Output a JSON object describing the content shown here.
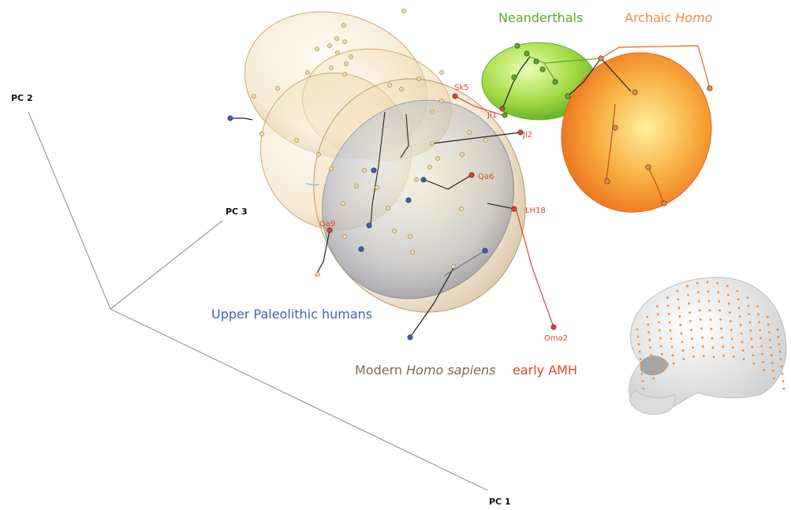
{
  "chart_data": {
    "type": "scatter",
    "dimensions": 3,
    "axes": {
      "x": "PC 1",
      "y": "PC 2",
      "z": "PC 3"
    },
    "groups": [
      {
        "key": "modern",
        "label": "Modern",
        "label_italic": "Homo sapiens",
        "color": "#7a6a5a",
        "fill": "#e8c98a"
      },
      {
        "key": "upper",
        "label": "Upper Paleolithic humans",
        "label_italic": "",
        "color": "#3f5fb0",
        "fill": "#5f7fcc"
      },
      {
        "key": "neanderthals",
        "label": "Neanderthals",
        "label_italic": "",
        "color": "#5daa2a",
        "fill": "#8fd03a"
      },
      {
        "key": "archaic",
        "label": "Archaic",
        "label_italic": "Homo",
        "color": "#f08a3a",
        "fill": "#f07820"
      },
      {
        "key": "early",
        "label": "early AMH",
        "label_italic": "",
        "color": "#e0452a",
        "fill": "#d03020"
      }
    ],
    "specimens": [
      "Sk5",
      "Jl1",
      "Jl2",
      "Qa6",
      "LH18",
      "Qa9",
      "Omo2"
    ]
  },
  "inset": {
    "icon": "skull-icon",
    "landmark_color": "#f08a3a"
  }
}
